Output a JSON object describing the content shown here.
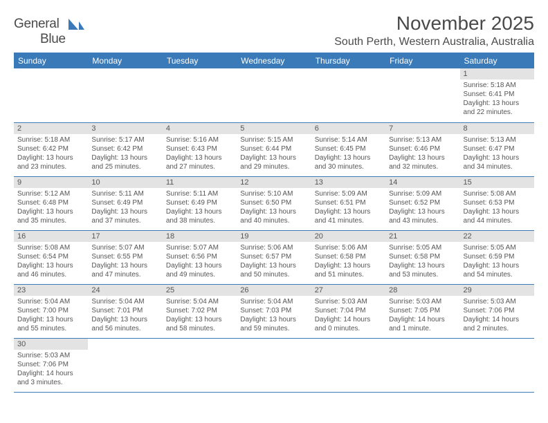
{
  "logo": {
    "word1": "General",
    "word2": "Blue"
  },
  "title": "November 2025",
  "location": "South Perth, Western Australia, Australia",
  "colors": {
    "header_bg": "#3a7ab8",
    "header_fg": "#ffffff",
    "daynum_bg": "#e3e3e3",
    "border": "#3a7ab8",
    "text": "#4a4a4a",
    "page_bg": "#ffffff"
  },
  "typography": {
    "title_fontsize": 28,
    "location_fontsize": 16,
    "header_fontsize": 12,
    "daynum_fontsize": 11,
    "daytext_fontsize": 10
  },
  "days_of_week": [
    "Sunday",
    "Monday",
    "Tuesday",
    "Wednesday",
    "Thursday",
    "Friday",
    "Saturday"
  ],
  "calendar": {
    "weeks": [
      [
        null,
        null,
        null,
        null,
        null,
        null,
        {
          "n": "1",
          "sunrise": "Sunrise: 5:18 AM",
          "sunset": "Sunset: 6:41 PM",
          "daylight": "Daylight: 13 hours and 22 minutes."
        }
      ],
      [
        {
          "n": "2",
          "sunrise": "Sunrise: 5:18 AM",
          "sunset": "Sunset: 6:42 PM",
          "daylight": "Daylight: 13 hours and 23 minutes."
        },
        {
          "n": "3",
          "sunrise": "Sunrise: 5:17 AM",
          "sunset": "Sunset: 6:42 PM",
          "daylight": "Daylight: 13 hours and 25 minutes."
        },
        {
          "n": "4",
          "sunrise": "Sunrise: 5:16 AM",
          "sunset": "Sunset: 6:43 PM",
          "daylight": "Daylight: 13 hours and 27 minutes."
        },
        {
          "n": "5",
          "sunrise": "Sunrise: 5:15 AM",
          "sunset": "Sunset: 6:44 PM",
          "daylight": "Daylight: 13 hours and 29 minutes."
        },
        {
          "n": "6",
          "sunrise": "Sunrise: 5:14 AM",
          "sunset": "Sunset: 6:45 PM",
          "daylight": "Daylight: 13 hours and 30 minutes."
        },
        {
          "n": "7",
          "sunrise": "Sunrise: 5:13 AM",
          "sunset": "Sunset: 6:46 PM",
          "daylight": "Daylight: 13 hours and 32 minutes."
        },
        {
          "n": "8",
          "sunrise": "Sunrise: 5:13 AM",
          "sunset": "Sunset: 6:47 PM",
          "daylight": "Daylight: 13 hours and 34 minutes."
        }
      ],
      [
        {
          "n": "9",
          "sunrise": "Sunrise: 5:12 AM",
          "sunset": "Sunset: 6:48 PM",
          "daylight": "Daylight: 13 hours and 35 minutes."
        },
        {
          "n": "10",
          "sunrise": "Sunrise: 5:11 AM",
          "sunset": "Sunset: 6:49 PM",
          "daylight": "Daylight: 13 hours and 37 minutes."
        },
        {
          "n": "11",
          "sunrise": "Sunrise: 5:11 AM",
          "sunset": "Sunset: 6:49 PM",
          "daylight": "Daylight: 13 hours and 38 minutes."
        },
        {
          "n": "12",
          "sunrise": "Sunrise: 5:10 AM",
          "sunset": "Sunset: 6:50 PM",
          "daylight": "Daylight: 13 hours and 40 minutes."
        },
        {
          "n": "13",
          "sunrise": "Sunrise: 5:09 AM",
          "sunset": "Sunset: 6:51 PM",
          "daylight": "Daylight: 13 hours and 41 minutes."
        },
        {
          "n": "14",
          "sunrise": "Sunrise: 5:09 AM",
          "sunset": "Sunset: 6:52 PM",
          "daylight": "Daylight: 13 hours and 43 minutes."
        },
        {
          "n": "15",
          "sunrise": "Sunrise: 5:08 AM",
          "sunset": "Sunset: 6:53 PM",
          "daylight": "Daylight: 13 hours and 44 minutes."
        }
      ],
      [
        {
          "n": "16",
          "sunrise": "Sunrise: 5:08 AM",
          "sunset": "Sunset: 6:54 PM",
          "daylight": "Daylight: 13 hours and 46 minutes."
        },
        {
          "n": "17",
          "sunrise": "Sunrise: 5:07 AM",
          "sunset": "Sunset: 6:55 PM",
          "daylight": "Daylight: 13 hours and 47 minutes."
        },
        {
          "n": "18",
          "sunrise": "Sunrise: 5:07 AM",
          "sunset": "Sunset: 6:56 PM",
          "daylight": "Daylight: 13 hours and 49 minutes."
        },
        {
          "n": "19",
          "sunrise": "Sunrise: 5:06 AM",
          "sunset": "Sunset: 6:57 PM",
          "daylight": "Daylight: 13 hours and 50 minutes."
        },
        {
          "n": "20",
          "sunrise": "Sunrise: 5:06 AM",
          "sunset": "Sunset: 6:58 PM",
          "daylight": "Daylight: 13 hours and 51 minutes."
        },
        {
          "n": "21",
          "sunrise": "Sunrise: 5:05 AM",
          "sunset": "Sunset: 6:58 PM",
          "daylight": "Daylight: 13 hours and 53 minutes."
        },
        {
          "n": "22",
          "sunrise": "Sunrise: 5:05 AM",
          "sunset": "Sunset: 6:59 PM",
          "daylight": "Daylight: 13 hours and 54 minutes."
        }
      ],
      [
        {
          "n": "23",
          "sunrise": "Sunrise: 5:04 AM",
          "sunset": "Sunset: 7:00 PM",
          "daylight": "Daylight: 13 hours and 55 minutes."
        },
        {
          "n": "24",
          "sunrise": "Sunrise: 5:04 AM",
          "sunset": "Sunset: 7:01 PM",
          "daylight": "Daylight: 13 hours and 56 minutes."
        },
        {
          "n": "25",
          "sunrise": "Sunrise: 5:04 AM",
          "sunset": "Sunset: 7:02 PM",
          "daylight": "Daylight: 13 hours and 58 minutes."
        },
        {
          "n": "26",
          "sunrise": "Sunrise: 5:04 AM",
          "sunset": "Sunset: 7:03 PM",
          "daylight": "Daylight: 13 hours and 59 minutes."
        },
        {
          "n": "27",
          "sunrise": "Sunrise: 5:03 AM",
          "sunset": "Sunset: 7:04 PM",
          "daylight": "Daylight: 14 hours and 0 minutes."
        },
        {
          "n": "28",
          "sunrise": "Sunrise: 5:03 AM",
          "sunset": "Sunset: 7:05 PM",
          "daylight": "Daylight: 14 hours and 1 minute."
        },
        {
          "n": "29",
          "sunrise": "Sunrise: 5:03 AM",
          "sunset": "Sunset: 7:06 PM",
          "daylight": "Daylight: 14 hours and 2 minutes."
        }
      ],
      [
        {
          "n": "30",
          "sunrise": "Sunrise: 5:03 AM",
          "sunset": "Sunset: 7:06 PM",
          "daylight": "Daylight: 14 hours and 3 minutes."
        },
        null,
        null,
        null,
        null,
        null,
        null
      ]
    ]
  }
}
